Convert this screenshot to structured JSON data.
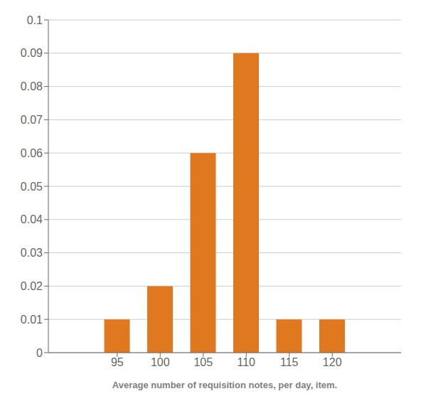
{
  "chart_data": {
    "type": "bar",
    "x": [
      95,
      100,
      105,
      110,
      115,
      120
    ],
    "values": [
      0.01,
      0.02,
      0.06,
      0.09,
      0.01,
      0.01
    ],
    "color": "#E07820",
    "xlabel": "Average number of requisition notes, per day, item.",
    "xlim": [
      87,
      128
    ],
    "xticks": [
      95,
      100,
      105,
      110,
      115,
      120
    ],
    "ylim": [
      0,
      0.1
    ],
    "yticks": [
      0,
      0.01,
      0.02,
      0.03,
      0.04,
      0.05,
      0.06,
      0.07,
      0.08,
      0.09,
      0.1
    ],
    "grid": true
  }
}
